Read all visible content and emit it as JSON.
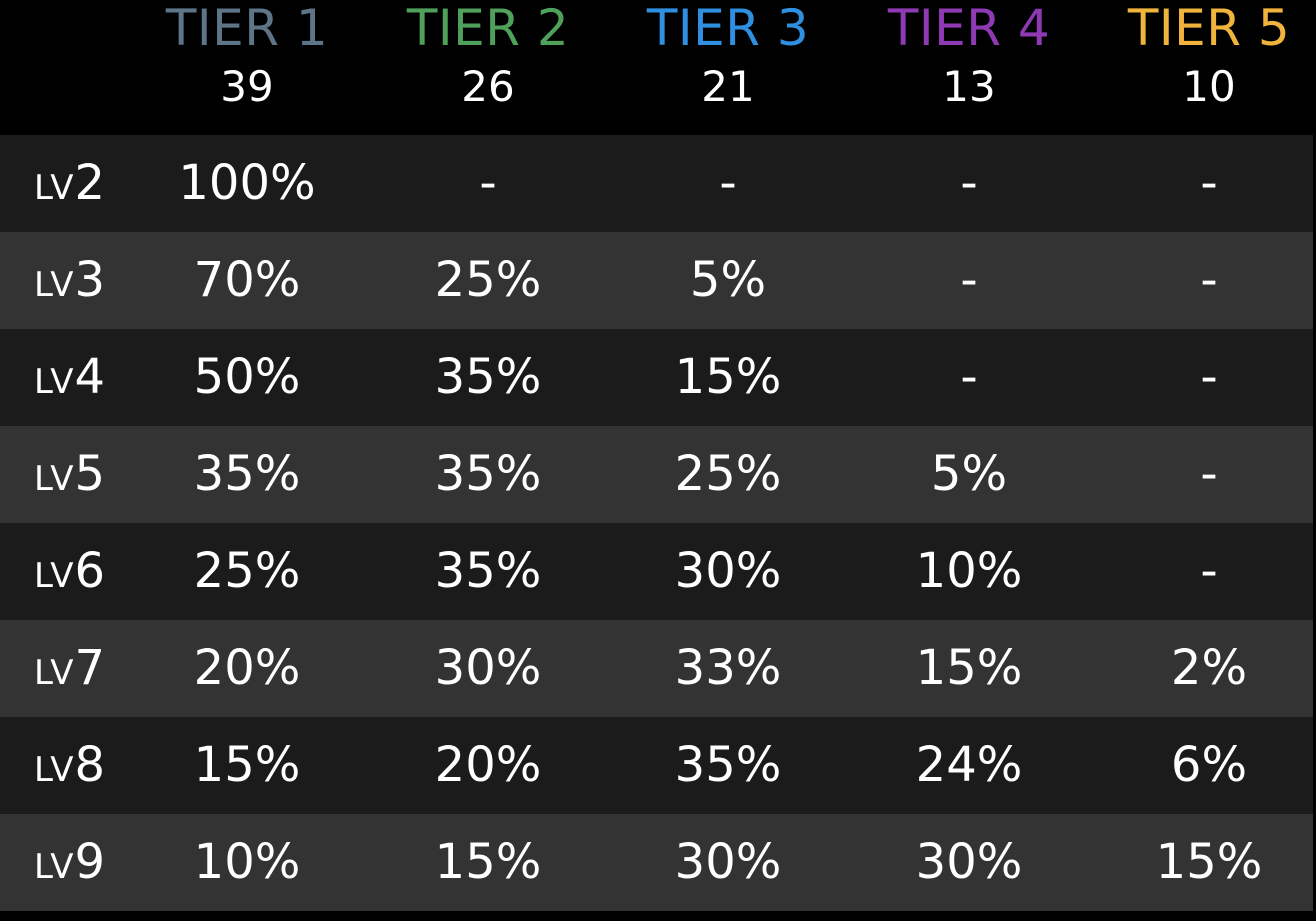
{
  "tier_colors": [
    "#5e7588",
    "#4fa05a",
    "#2f8fe0",
    "#8f3ab4",
    "#f0b33c"
  ],
  "tiers": [
    {
      "name": "TIER 1",
      "count": "39"
    },
    {
      "name": "TIER 2",
      "count": "26"
    },
    {
      "name": "TIER 3",
      "count": "21"
    },
    {
      "name": "TIER 4",
      "count": "13"
    },
    {
      "name": "TIER 5",
      "count": "10"
    }
  ],
  "level_prefix": "LV",
  "rows": [
    {
      "level": "2",
      "values": [
        "100%",
        "-",
        "-",
        "-",
        "-"
      ]
    },
    {
      "level": "3",
      "values": [
        "70%",
        "25%",
        "5%",
        "-",
        "-"
      ]
    },
    {
      "level": "4",
      "values": [
        "50%",
        "35%",
        "15%",
        "-",
        "-"
      ]
    },
    {
      "level": "5",
      "values": [
        "35%",
        "35%",
        "25%",
        "5%",
        "-"
      ]
    },
    {
      "level": "6",
      "values": [
        "25%",
        "35%",
        "30%",
        "10%",
        "-"
      ]
    },
    {
      "level": "7",
      "values": [
        "20%",
        "30%",
        "33%",
        "15%",
        "2%"
      ]
    },
    {
      "level": "8",
      "values": [
        "15%",
        "20%",
        "35%",
        "24%",
        "6%"
      ]
    },
    {
      "level": "9",
      "values": [
        "10%",
        "15%",
        "30%",
        "30%",
        "15%"
      ]
    }
  ]
}
